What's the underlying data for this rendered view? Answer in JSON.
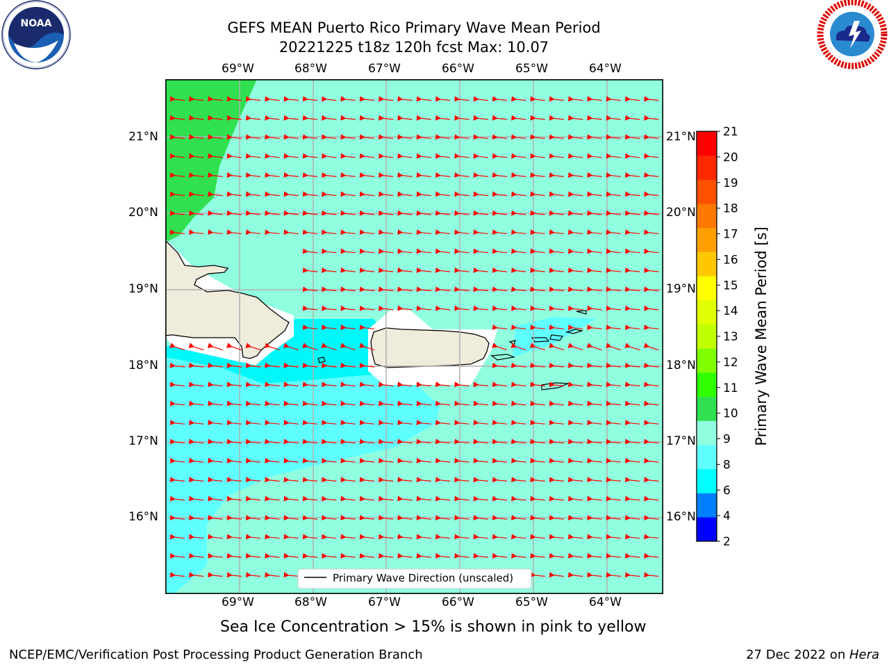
{
  "title_line1": "GEFS MEAN Puerto Rico Primary Wave Mean Period",
  "title_line2": "20221225 t18z 120h fcst   Max: 10.07",
  "lon_labels": [
    "69°W",
    "68°W",
    "67°W",
    "66°W",
    "65°W",
    "64°W"
  ],
  "lat_labels": [
    "21°N",
    "20°N",
    "19°N",
    "18°N",
    "17°N",
    "16°N"
  ],
  "legend_label": "Primary Wave Direction (unscaled)",
  "colorbar": {
    "label": "Primary Wave Mean Period [s]",
    "ticks": [
      "2",
      "4",
      "6",
      "8",
      "9",
      "10",
      "11",
      "12",
      "13",
      "14",
      "15",
      "16",
      "17",
      "18",
      "19",
      "20",
      "21"
    ],
    "colors": [
      "#0000ff",
      "#0080ff",
      "#00ffff",
      "#60ffff",
      "#90ffe0",
      "#30e050",
      "#30ff00",
      "#80ff00",
      "#c0ff00",
      "#e0ff00",
      "#ffff00",
      "#ffc800",
      "#ffa000",
      "#ff7800",
      "#ff5000",
      "#ff2800",
      "#ff0000"
    ]
  },
  "sea_ice_note": "Sea Ice Concentration > 15% is shown in pink to yellow",
  "footer_left": "NCEP/EMC/Verification Post Processing Product Generation Branch",
  "footer_right_date": "27 Dec 2022 on ",
  "footer_right_host": "Hera",
  "logos": {
    "noaa_text": "NOAA",
    "noaa_ring": "NATIONAL OCEANIC AND ATMOSPHERIC ADMINISTRATION · U.S. DEPARTMENT OF COMMERCE",
    "nws_ring": "NATIONAL WEATHER SERVICE"
  },
  "map_colors": {
    "land": "#efecdc",
    "sea_9_10": "#90ffe0",
    "sea_8_9": "#60ffff",
    "sea_6_8": "#00f8f8",
    "period_10_11": "#30e050",
    "arrows": "#ff0000",
    "gridlines": "#b0b0b0"
  }
}
